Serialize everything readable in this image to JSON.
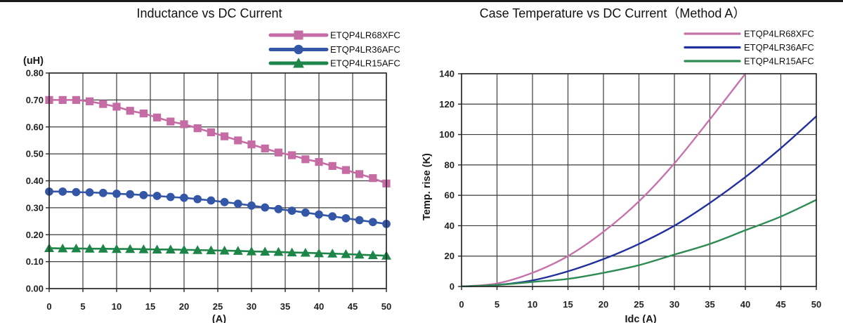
{
  "page": {
    "background": "#ffffff",
    "top_rule_color": "#1a1a1a"
  },
  "chart_data": [
    {
      "type": "line",
      "title": "Inductance vs DC Current",
      "xlabel": "(A)",
      "ylabel": "(uH)",
      "xlim": [
        0,
        50
      ],
      "ylim": [
        0,
        0.8
      ],
      "grid": true,
      "legend_position": "top-right",
      "x_ticks": [
        0,
        5,
        10,
        15,
        20,
        25,
        30,
        35,
        40,
        45,
        50
      ],
      "x_tick_labels": [
        "0",
        "5",
        "10",
        "15",
        "20",
        "25",
        "30",
        "35",
        "40",
        "45",
        "50"
      ],
      "y_ticks": [
        0,
        0.1,
        0.2,
        0.3,
        0.4,
        0.5,
        0.6,
        0.7,
        0.8
      ],
      "y_tick_labels": [
        "0.00",
        "0.10",
        "0.20",
        "0.30",
        "0.40",
        "0.50",
        "0.60",
        "0.70",
        "0.80"
      ],
      "x": [
        0,
        2,
        4,
        6,
        8,
        10,
        12,
        14,
        16,
        18,
        20,
        22,
        24,
        26,
        28,
        30,
        32,
        34,
        36,
        38,
        40,
        42,
        44,
        46,
        48,
        50
      ],
      "series": [
        {
          "name": "ETQP4LR68XFC",
          "color": "#C56CA4",
          "marker": "square",
          "values": [
            0.7,
            0.7,
            0.7,
            0.695,
            0.685,
            0.675,
            0.66,
            0.65,
            0.635,
            0.62,
            0.61,
            0.595,
            0.58,
            0.565,
            0.55,
            0.535,
            0.52,
            0.505,
            0.495,
            0.48,
            0.47,
            0.455,
            0.44,
            0.425,
            0.41,
            0.39
          ]
        },
        {
          "name": "ETQP4LR36AFC",
          "color": "#3357A6",
          "marker": "circle",
          "values": [
            0.36,
            0.36,
            0.358,
            0.357,
            0.355,
            0.352,
            0.35,
            0.347,
            0.344,
            0.34,
            0.337,
            0.332,
            0.327,
            0.321,
            0.315,
            0.308,
            0.301,
            0.295,
            0.289,
            0.282,
            0.275,
            0.268,
            0.261,
            0.254,
            0.247,
            0.24
          ]
        },
        {
          "name": "ETQP4LR15AFC",
          "color": "#1E8549",
          "marker": "triangle",
          "values": [
            0.15,
            0.149,
            0.149,
            0.148,
            0.148,
            0.147,
            0.147,
            0.146,
            0.145,
            0.145,
            0.144,
            0.143,
            0.142,
            0.141,
            0.14,
            0.138,
            0.137,
            0.136,
            0.134,
            0.133,
            0.131,
            0.13,
            0.128,
            0.126,
            0.124,
            0.122
          ]
        }
      ]
    },
    {
      "type": "line",
      "title": "Case Temperature vs DC Current（Method A）",
      "xlabel": "Idc (A)",
      "ylabel": "Temp. rise (K)",
      "xlim": [
        0,
        50
      ],
      "ylim": [
        0,
        140
      ],
      "grid": true,
      "legend_position": "top-right",
      "x_ticks": [
        0,
        5,
        10,
        15,
        20,
        25,
        30,
        35,
        40,
        45,
        50
      ],
      "x_tick_labels": [
        "0",
        "5",
        "10",
        "15",
        "20",
        "25",
        "30",
        "35",
        "40",
        "45",
        "50"
      ],
      "y_ticks": [
        0,
        20,
        40,
        60,
        80,
        100,
        120,
        140
      ],
      "y_tick_labels": [
        "0",
        "20",
        "40",
        "60",
        "80",
        "100",
        "120",
        "140"
      ],
      "x": [
        0,
        5,
        10,
        15,
        20,
        25,
        30,
        35,
        40,
        45,
        50
      ],
      "series": [
        {
          "name": "ETQP4LR68XFC",
          "color": "#C573AA",
          "marker": "none",
          "smooth": true,
          "x": [
            0,
            5,
            10,
            15,
            20,
            25,
            30,
            35,
            40
          ],
          "values": [
            0,
            2,
            9,
            20,
            36,
            56,
            81,
            110,
            140
          ]
        },
        {
          "name": "ETQP4LR36AFC",
          "color": "#21309D",
          "marker": "none",
          "smooth": true,
          "values": [
            0,
            1,
            4,
            10,
            18,
            28,
            40,
            55,
            72,
            91,
            112
          ]
        },
        {
          "name": "ETQP4LR15AFC",
          "color": "#2E8B52",
          "marker": "none",
          "smooth": true,
          "values": [
            0,
            1,
            3,
            5,
            9,
            14,
            21,
            28,
            37,
            46,
            57
          ]
        }
      ]
    }
  ]
}
